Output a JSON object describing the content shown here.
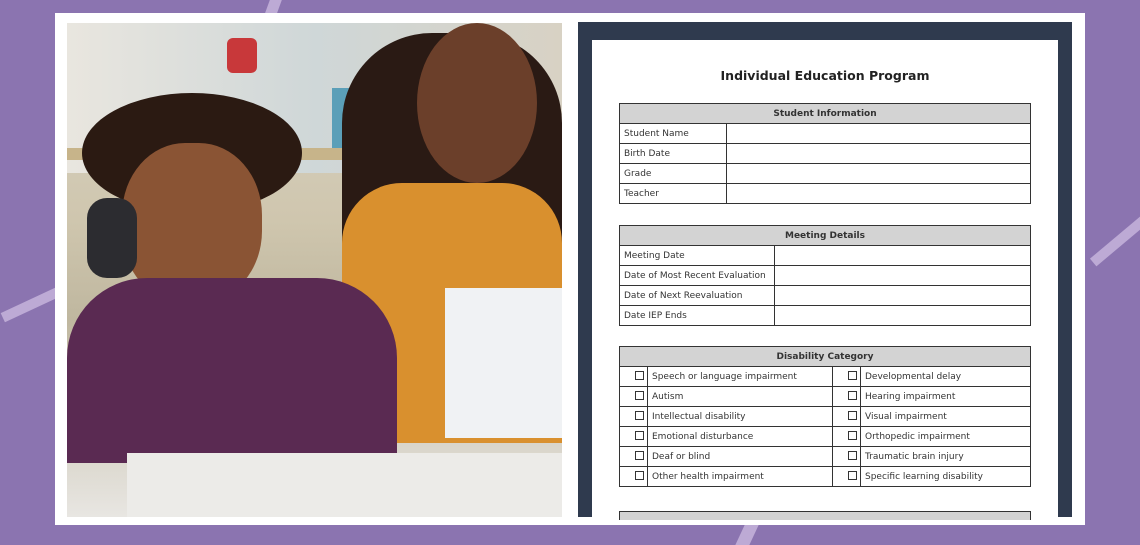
{
  "document": {
    "title": "Individual Education Program",
    "student_information": {
      "header": "Student Information",
      "rows": [
        "Student Name",
        "Birth Date",
        "Grade",
        "Teacher"
      ]
    },
    "meeting_details": {
      "header": "Meeting Details",
      "rows": [
        "Meeting Date",
        "Date of Most Recent Evaluation",
        "Date of Next Reevaluation",
        "Date IEP Ends"
      ]
    },
    "disability_category": {
      "header": "Disability Category",
      "left": [
        "Speech or language impairment",
        "Autism",
        "Intellectual disability",
        "Emotional disturbance",
        "Deaf or blind",
        "Other health impairment"
      ],
      "right": [
        "Developmental delay",
        "Hearing impairment",
        "Visual impairment",
        "Orthopedic impairment",
        "Traumatic brain injury",
        "Specific learning disability"
      ]
    }
  },
  "colors": {
    "background": "#8b74b0",
    "panel": "#2f3a4e",
    "header_fill": "#d3d3d3"
  }
}
